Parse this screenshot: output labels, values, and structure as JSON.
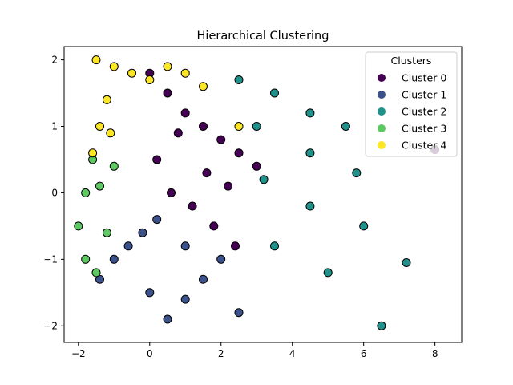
{
  "chart_data": {
    "type": "scatter",
    "title": "Hierarchical Clustering",
    "xlabel": "",
    "ylabel": "",
    "xlim": [
      -2.4,
      8.75
    ],
    "ylim": [
      -2.25,
      2.2
    ],
    "xticks": [
      -2,
      0,
      2,
      4,
      6,
      8
    ],
    "yticks": [
      -2,
      -1,
      0,
      1,
      2
    ],
    "xtick_labels": [
      "−2",
      "0",
      "2",
      "4",
      "6",
      "8"
    ],
    "ytick_labels": [
      "−2",
      "−1",
      "0",
      "1",
      "2"
    ],
    "grid": false,
    "legend": {
      "title": "Clusters",
      "placement": "top-right"
    },
    "series": [
      {
        "name": "Cluster 0",
        "color": "#440154",
        "points": [
          [
            0,
            1.8
          ],
          [
            0.5,
            1.5
          ],
          [
            1,
            1.2
          ],
          [
            1.5,
            1
          ],
          [
            2,
            0.8
          ],
          [
            2.5,
            0.6
          ],
          [
            3,
            0.4
          ],
          [
            0.2,
            0.5
          ],
          [
            0.6,
            0
          ],
          [
            1.2,
            -0.2
          ],
          [
            1.8,
            -0.5
          ],
          [
            2.4,
            -0.8
          ],
          [
            0.8,
            0.9
          ],
          [
            1.6,
            0.3
          ],
          [
            2.2,
            0.1
          ],
          [
            8,
            0.65
          ]
        ]
      },
      {
        "name": "Cluster 1",
        "color": "#3b528b",
        "points": [
          [
            -1.4,
            -1.3
          ],
          [
            -1,
            -1
          ],
          [
            -0.6,
            -0.8
          ],
          [
            -0.2,
            -0.6
          ],
          [
            0.2,
            -0.4
          ],
          [
            0.5,
            -1.9
          ],
          [
            1,
            -1.6
          ],
          [
            1.5,
            -1.3
          ],
          [
            2,
            -1
          ],
          [
            2.5,
            -1.8
          ],
          [
            0,
            -1.5
          ],
          [
            1,
            -0.8
          ]
        ]
      },
      {
        "name": "Cluster 2",
        "color": "#21918c",
        "points": [
          [
            2.5,
            1.7
          ],
          [
            3.5,
            1.5
          ],
          [
            4.5,
            1.2
          ],
          [
            5.5,
            1
          ],
          [
            3,
            1
          ],
          [
            4.5,
            0.6
          ],
          [
            5.8,
            0.3
          ],
          [
            3.2,
            0.2
          ],
          [
            4.5,
            -0.2
          ],
          [
            6,
            -0.5
          ],
          [
            7.2,
            -1.05
          ],
          [
            3.5,
            -0.8
          ],
          [
            5,
            -1.2
          ],
          [
            6.5,
            -2
          ]
        ]
      },
      {
        "name": "Cluster 3",
        "color": "#5ec962",
        "points": [
          [
            -1.6,
            0.5
          ],
          [
            -1.8,
            0
          ],
          [
            -2,
            -0.5
          ],
          [
            -1.8,
            -1
          ],
          [
            -1.4,
            0.1
          ],
          [
            -1.2,
            -0.6
          ],
          [
            -1,
            0.4
          ],
          [
            -1.5,
            -1.2
          ]
        ]
      },
      {
        "name": "Cluster 4",
        "color": "#fde725",
        "points": [
          [
            -1.5,
            2
          ],
          [
            -1,
            1.9
          ],
          [
            -0.5,
            1.8
          ],
          [
            0,
            1.7
          ],
          [
            0.5,
            1.9
          ],
          [
            1,
            1.8
          ],
          [
            1.5,
            1.6
          ],
          [
            -1.2,
            1.4
          ],
          [
            -1.4,
            1
          ],
          [
            -1.6,
            0.6
          ],
          [
            -1.1,
            0.9
          ],
          [
            2.5,
            1
          ]
        ]
      }
    ]
  }
}
